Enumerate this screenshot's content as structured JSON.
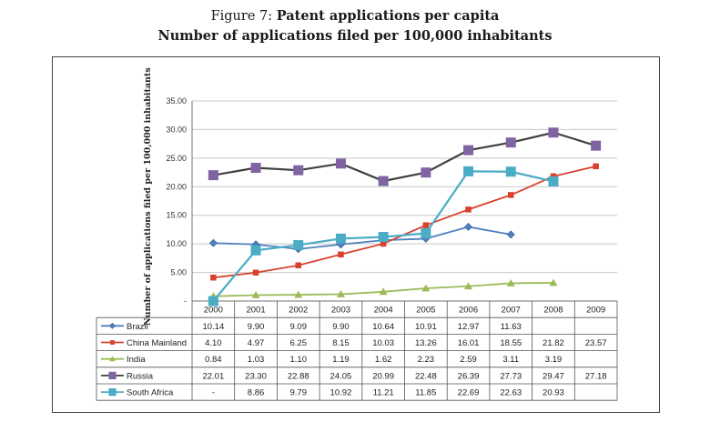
{
  "figure": {
    "label": "Figure 7:",
    "name": "Patent applications per capita",
    "subtitle": "Number of applications filed per 100,000 inhabitants"
  },
  "chart_data": {
    "type": "line",
    "title": "Patent applications per capita",
    "subtitle": "Number of applications filed per 100,000 inhabitants",
    "xlabel": "",
    "ylabel": "Number of applications filed per 100,000 inhabitants",
    "ylim": [
      0,
      35
    ],
    "yticks": [
      "35.00",
      "30.00",
      "25.00",
      "20.00",
      "15.00",
      "10.00",
      "5.00",
      "-"
    ],
    "ytick_values": [
      35,
      30,
      25,
      20,
      15,
      10,
      5,
      0
    ],
    "grid": true,
    "legend": "table-rows",
    "categories": [
      "2000",
      "2001",
      "2002",
      "2003",
      "2004",
      "2005",
      "2006",
      "2007",
      "2008",
      "2009"
    ],
    "series": [
      {
        "name": "Brazil",
        "color": "#4f81bd",
        "marker": "diamond",
        "values": [
          10.14,
          9.9,
          9.09,
          9.9,
          10.64,
          10.91,
          12.97,
          11.63,
          null,
          null
        ],
        "labels": [
          "10.14",
          "9.90",
          "9.09",
          "9.90",
          "10.64",
          "10.91",
          "12.97",
          "11.63",
          "",
          ""
        ]
      },
      {
        "name": "China Mainland",
        "color": "#d9412f",
        "marker": "square",
        "values": [
          4.1,
          4.97,
          6.25,
          8.15,
          10.03,
          13.26,
          16.01,
          18.55,
          21.82,
          23.57
        ],
        "labels": [
          "4.10",
          "4.97",
          "6.25",
          "8.15",
          "10.03",
          "13.26",
          "16.01",
          "18.55",
          "21.82",
          "23.57"
        ]
      },
      {
        "name": "India",
        "color": "#9bbb59",
        "marker": "triangle",
        "values": [
          0.84,
          1.03,
          1.1,
          1.19,
          1.62,
          2.23,
          2.59,
          3.11,
          3.19,
          null
        ],
        "labels": [
          "0.84",
          "1.03",
          "1.10",
          "1.19",
          "1.62",
          "2.23",
          "2.59",
          "3.11",
          "3.19",
          ""
        ]
      },
      {
        "name": "Russia",
        "color": "#8064a2",
        "marker": "square",
        "line_color": "#404040",
        "values": [
          22.01,
          23.3,
          22.88,
          24.05,
          20.99,
          22.48,
          26.39,
          27.73,
          29.47,
          27.18
        ],
        "labels": [
          "22.01",
          "23.30",
          "22.88",
          "24.05",
          "20.99",
          "22.48",
          "26.39",
          "27.73",
          "29.47",
          "27.18"
        ]
      },
      {
        "name": "South Africa",
        "color": "#4bacc6",
        "marker": "square",
        "values": [
          0,
          8.86,
          9.79,
          10.92,
          11.21,
          11.85,
          22.69,
          22.63,
          20.93,
          null
        ],
        "labels": [
          "-",
          "8.86",
          "9.79",
          "10.92",
          "11.21",
          "11.85",
          "22.69",
          "22.63",
          "20.93",
          ""
        ]
      }
    ]
  }
}
